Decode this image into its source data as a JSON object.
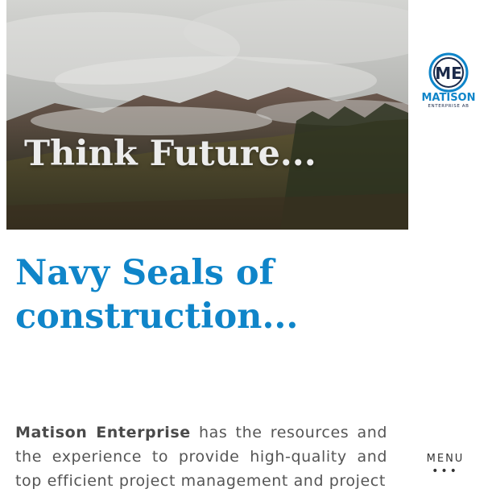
{
  "hero": {
    "title": "Think Future..."
  },
  "logo": {
    "monogram": "ME",
    "name": "MATISON",
    "subtitle": "ENTERPRISE AB",
    "accent": "#0f85c9",
    "dark": "#1b2a4a"
  },
  "main": {
    "heading": "Navy Seals of construction...",
    "intro_company": "Matison Enterprise",
    "intro_text": " has the resources and the experience to provide high-quality and top efficient project management and project"
  },
  "menu": {
    "label": "MENU",
    "icon": "more-dots-icon",
    "dots": "•••"
  }
}
